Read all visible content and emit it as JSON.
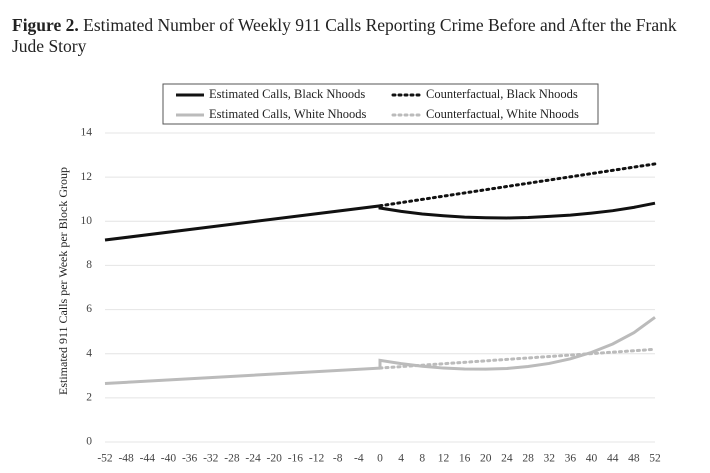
{
  "chart_data": {
    "type": "line",
    "figure_label": "Figure 2.",
    "title": "Estimated Number of Weekly 911 Calls Reporting Crime Before and After the Frank Jude Story",
    "ylabel": "Estimated 911 Calls per Week per Block Group",
    "xlim": [
      -52,
      52
    ],
    "ylim": [
      0,
      14
    ],
    "xticks": [
      -52,
      -48,
      -44,
      -40,
      -36,
      -32,
      -28,
      -24,
      -20,
      -16,
      -12,
      -8,
      -4,
      0,
      4,
      8,
      12,
      16,
      20,
      24,
      28,
      32,
      36,
      40,
      44,
      48,
      52
    ],
    "yticks": [
      0,
      2,
      4,
      6,
      8,
      10,
      12,
      14
    ],
    "grid": true,
    "legend": "top",
    "series": [
      {
        "name": "Estimated Calls, Black Nhoods",
        "color": "#111111",
        "dash": "solid",
        "x": [
          -52,
          0,
          0,
          4,
          8,
          12,
          16,
          20,
          24,
          28,
          32,
          36,
          40,
          44,
          48,
          52
        ],
        "values": [
          9.15,
          10.7,
          10.6,
          10.45,
          10.33,
          10.25,
          10.19,
          10.16,
          10.15,
          10.17,
          10.22,
          10.28,
          10.37,
          10.48,
          10.63,
          10.82
        ]
      },
      {
        "name": "Counterfactual, Black Nhoods",
        "color": "#111111",
        "dash": "dotted",
        "x": [
          0,
          52
        ],
        "values": [
          10.7,
          12.6
        ]
      },
      {
        "name": "Estimated Calls, White Nhoods",
        "color": "#bbbbbb",
        "dash": "solid",
        "x": [
          -52,
          0,
          0,
          4,
          8,
          12,
          16,
          20,
          24,
          28,
          32,
          36,
          40,
          44,
          48,
          52
        ],
        "values": [
          2.65,
          3.35,
          3.7,
          3.55,
          3.43,
          3.35,
          3.31,
          3.3,
          3.33,
          3.42,
          3.56,
          3.77,
          4.06,
          4.44,
          4.95,
          5.65
        ]
      },
      {
        "name": "Counterfactual, White Nhoods",
        "color": "#bbbbbb",
        "dash": "dotted",
        "x": [
          0,
          52
        ],
        "values": [
          3.35,
          4.2
        ]
      }
    ]
  }
}
